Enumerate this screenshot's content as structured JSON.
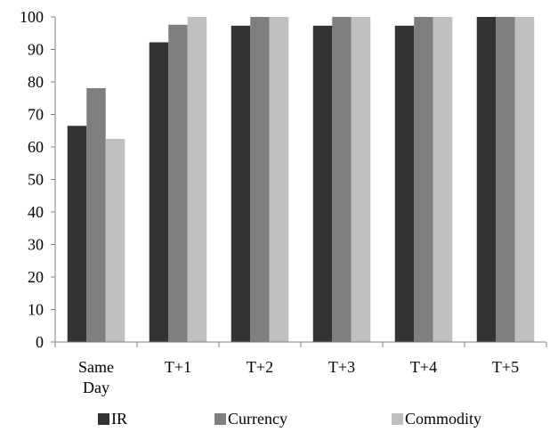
{
  "chart_data": {
    "type": "bar",
    "categories": [
      [
        "Same",
        "Day"
      ],
      [
        "T+1"
      ],
      [
        "T+2"
      ],
      [
        "T+3"
      ],
      [
        "T+4"
      ],
      [
        "T+5"
      ]
    ],
    "series": [
      {
        "name": "IR",
        "color": "#333333",
        "values": [
          66.5,
          92.2,
          97.3,
          97.3,
          97.3,
          100
        ]
      },
      {
        "name": "Currency",
        "color": "#7f7f7f",
        "values": [
          78.1,
          97.6,
          100,
          100,
          100,
          100
        ]
      },
      {
        "name": "Commodity",
        "color": "#bfbfbf",
        "values": [
          62.5,
          100,
          100,
          100,
          100,
          100
        ]
      }
    ],
    "yticks": [
      "0",
      "10",
      "20",
      "30",
      "40",
      "50",
      "60",
      "70",
      "80",
      "90",
      "100"
    ],
    "ylim": [
      0,
      100
    ],
    "grid": false,
    "legend_position": "bottom"
  }
}
